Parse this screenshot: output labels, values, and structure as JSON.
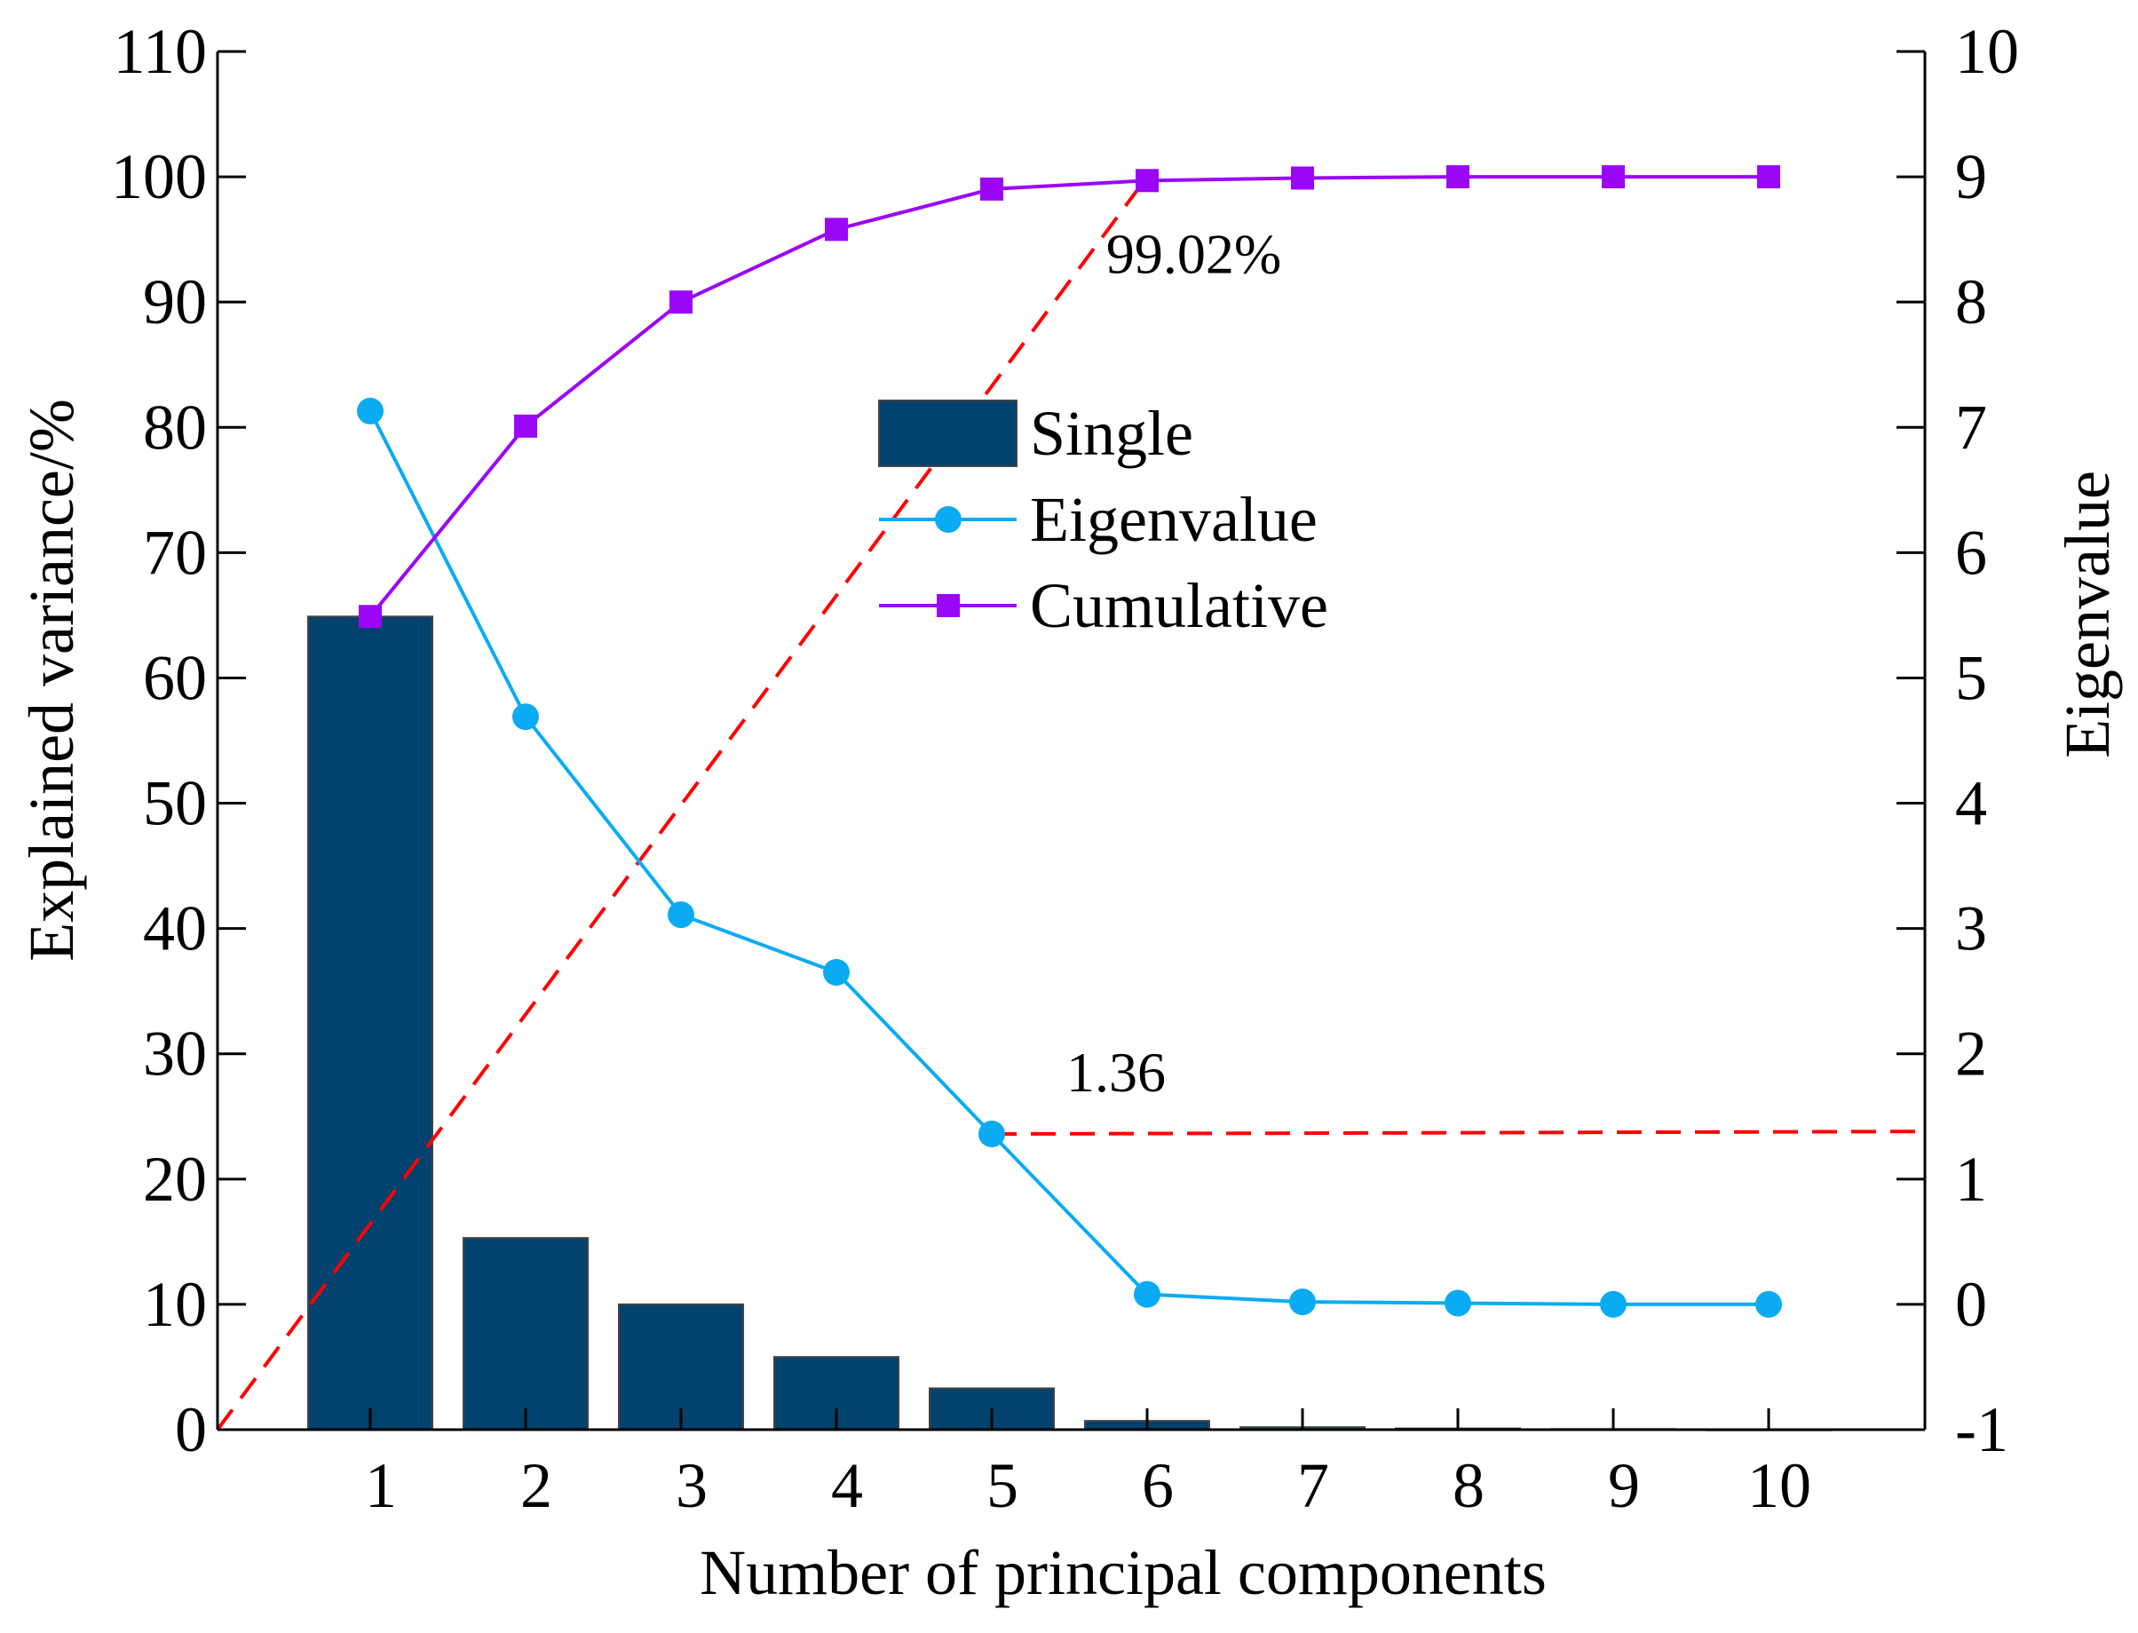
{
  "chart_data": {
    "type": "bar+line",
    "xlabel": "Number of principal components",
    "ylabel_left": "Explained variance/%",
    "ylabel_right": "Eigenvalue",
    "categories": [
      "1",
      "2",
      "3",
      "4",
      "5",
      "6",
      "7",
      "8",
      "9",
      "10"
    ],
    "ylim_left": [
      0,
      110
    ],
    "yticks_left": [
      "0",
      "10",
      "20",
      "30",
      "40",
      "50",
      "60",
      "70",
      "80",
      "90",
      "100",
      "110"
    ],
    "ylim_right": [
      -1,
      10
    ],
    "yticks_right": [
      "-1",
      "0",
      "1",
      "2",
      "3",
      "4",
      "5",
      "6",
      "7",
      "8",
      "9",
      "10"
    ],
    "series": [
      {
        "name": "Single",
        "kind": "bar",
        "axis": "left",
        "color": "#02426f",
        "values": [
          64.9,
          15.3,
          10.0,
          5.8,
          3.3,
          0.7,
          0.2,
          0.1,
          0.05,
          0.02
        ]
      },
      {
        "name": "Eigenvalue",
        "kind": "line",
        "marker": "circle",
        "axis": "right",
        "color": "#0aabf3",
        "values": [
          7.13,
          4.69,
          3.11,
          2.65,
          1.36,
          0.08,
          0.02,
          0.01,
          0.0,
          0.0
        ]
      },
      {
        "name": "Cumulative",
        "kind": "line",
        "marker": "square",
        "axis": "left",
        "color": "#9b06f7",
        "values": [
          64.9,
          80.1,
          90.0,
          95.8,
          99.02,
          99.7,
          99.9,
          100.0,
          100.0,
          100.0
        ]
      }
    ],
    "reference_lines": [
      {
        "axis": "left",
        "from": 0,
        "to": 100,
        "from_x": 0.1,
        "to_x": 6,
        "color": "#ff0000",
        "style": "dashed"
      },
      {
        "axis": "right",
        "from": 1.36,
        "to": 1.38,
        "from_x": 5,
        "to_x": 11.0,
        "color": "#ff0000",
        "style": "dashed"
      }
    ],
    "annotations": [
      {
        "text": "99.02%",
        "x": 6.3,
        "y_left": 92.3,
        "anchor": "middle"
      },
      {
        "text": "1.36",
        "x": 5.8,
        "y_left": 27,
        "anchor": "middle"
      }
    ],
    "legend": {
      "position": "upper-center",
      "entries": [
        "Single",
        "Eigenvalue",
        "Cumulative"
      ]
    }
  }
}
